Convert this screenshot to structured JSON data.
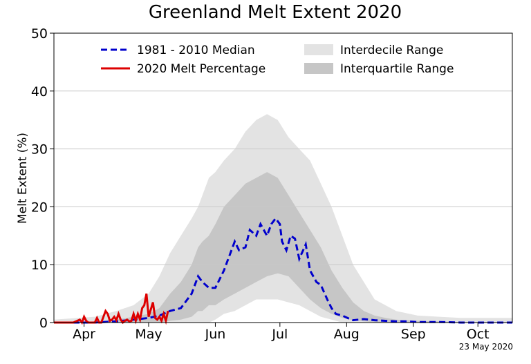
{
  "chart_data": {
    "type": "line",
    "title": "Greenland Melt Extent 2020",
    "xlabel": "",
    "ylabel": "Melt Extent (%)",
    "ylim": [
      0,
      50
    ],
    "yticks": [
      0,
      10,
      20,
      30,
      40,
      50
    ],
    "grid": "horizontal",
    "legend_placement": "top",
    "x_tick_labels": [
      {
        "label": "Apr",
        "day": 105
      },
      {
        "label": "May",
        "day": 135
      },
      {
        "label": "Jun",
        "day": 166
      },
      {
        "label": "Jul",
        "day": 196
      },
      {
        "label": "Aug",
        "day": 227
      },
      {
        "label": "Sep",
        "day": 258
      },
      {
        "label": "Oct",
        "day": 288
      }
    ],
    "xlim_day": [
      91,
      304
    ],
    "date_stamp": "23 May 2020",
    "legend": {
      "median": "1981 - 2010 Median",
      "melt2020": "2020 Melt Percentage",
      "interdecile": "Interdecile Range",
      "interquartile": "Interquartile Range"
    },
    "colors": {
      "median": "#0000cc",
      "melt2020": "#dd0000",
      "interdecile": "#e3e3e3",
      "interquartile": "#c6c6c6",
      "grid": "#c8c8c8"
    },
    "series": [
      {
        "name": "1981 - 2010 Median",
        "style": "dashed",
        "x_day": [
          91,
          100,
          110,
          120,
          128,
          135,
          140,
          145,
          150,
          155,
          158,
          160,
          163,
          166,
          170,
          172,
          175,
          177,
          180,
          182,
          185,
          187,
          190,
          192,
          194,
          196,
          197,
          199,
          201,
          203,
          205,
          208,
          210,
          213,
          215,
          218,
          220,
          222,
          225,
          228,
          230,
          235,
          240,
          245,
          250,
          255,
          260,
          270,
          280,
          290,
          304
        ],
        "y": [
          0,
          0,
          0,
          0.2,
          0.5,
          0.8,
          1.2,
          2,
          2.5,
          5,
          8,
          7,
          6,
          6,
          9,
          11,
          14,
          12.5,
          13,
          16,
          15,
          17,
          15,
          17,
          18,
          17,
          14,
          12.5,
          15,
          14.5,
          11,
          13.5,
          9,
          7,
          6.5,
          4,
          2.5,
          1.5,
          1.2,
          0.7,
          0.4,
          0.6,
          0.4,
          0.3,
          0.2,
          0.2,
          0.1,
          0.1,
          0,
          0,
          0
        ]
      },
      {
        "name": "2020 Melt Percentage",
        "style": "solid",
        "x_day": [
          91,
          95,
          100,
          103,
          104,
          105,
          106,
          107,
          109,
          110,
          111,
          112,
          113,
          115,
          116,
          117,
          118,
          119,
          120,
          121,
          122,
          123,
          124,
          125,
          126,
          127,
          128,
          129,
          130,
          131,
          132,
          133,
          134,
          135,
          137,
          138,
          139,
          140,
          141,
          142,
          143,
          144
        ],
        "y": [
          0,
          0,
          0,
          0.5,
          0,
          1,
          0.3,
          0,
          0,
          0,
          0.8,
          0,
          0,
          2,
          1.5,
          0.3,
          0.5,
          1,
          0.4,
          1.5,
          0.5,
          0,
          0.3,
          0.5,
          0.2,
          0.3,
          1.5,
          0.3,
          1.5,
          0.5,
          2.5,
          3,
          5,
          1,
          3.5,
          0.8,
          0.5,
          1,
          0.3,
          1.5,
          0.3,
          2
        ]
      }
    ],
    "bands": [
      {
        "name": "Interdecile Range",
        "x_day": [
          91,
          110,
          120,
          128,
          135,
          140,
          145,
          150,
          155,
          158,
          160,
          163,
          166,
          170,
          175,
          180,
          185,
          190,
          195,
          200,
          205,
          210,
          215,
          220,
          225,
          230,
          235,
          240,
          245,
          250,
          260,
          270,
          280,
          290,
          304
        ],
        "low": [
          0,
          0,
          0,
          0,
          0,
          0,
          0,
          0,
          0,
          0,
          0,
          0,
          0.5,
          1.5,
          2,
          3,
          4,
          4,
          4,
          3.5,
          3,
          2,
          1,
          0.5,
          0,
          0,
          0,
          0,
          0,
          0,
          0,
          0,
          0,
          0,
          0
        ],
        "high": [
          0.5,
          1,
          2,
          3,
          5,
          8,
          12,
          15,
          18,
          20,
          22,
          25,
          26,
          28,
          30,
          33,
          35,
          36,
          35,
          32,
          30,
          28,
          24,
          20,
          15,
          10,
          7,
          4,
          3,
          2,
          1.2,
          1,
          0.8,
          0.8,
          0.8
        ]
      },
      {
        "name": "Interquartile Range",
        "x_day": [
          91,
          110,
          120,
          128,
          135,
          140,
          145,
          150,
          155,
          158,
          160,
          163,
          166,
          170,
          175,
          180,
          185,
          190,
          195,
          200,
          205,
          210,
          215,
          220,
          225,
          230,
          235,
          240,
          245,
          250,
          260,
          270,
          280,
          290,
          304
        ],
        "low": [
          0,
          0,
          0,
          0,
          0,
          0,
          0.3,
          0.5,
          1,
          2,
          2,
          3,
          3,
          4,
          5,
          6,
          7,
          8,
          8.5,
          8,
          6,
          4,
          2.5,
          1.5,
          0.8,
          0.4,
          0.2,
          0.1,
          0,
          0,
          0,
          0,
          0,
          0,
          0
        ],
        "high": [
          0,
          0.2,
          0.5,
          1,
          1.5,
          2.5,
          5,
          7,
          10,
          13,
          14,
          15,
          17,
          20,
          22,
          24,
          25,
          26,
          25,
          22,
          19,
          16,
          13,
          9,
          6,
          3.5,
          2,
          1.2,
          0.8,
          0.5,
          0.3,
          0.2,
          0.1,
          0.1,
          0.1
        ]
      }
    ]
  }
}
